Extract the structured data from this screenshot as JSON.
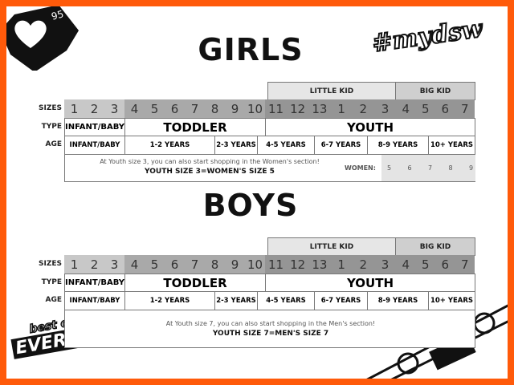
{
  "likes": {
    "count": "95",
    "icon": "heart-icon"
  },
  "hashtag": "#mydsw",
  "logo": {
    "line1": "best of",
    "line2": "EVERYTHING"
  },
  "colors": {
    "border": "#ff5a0a",
    "infant": "#c8c8c8",
    "toddler": "#a9a9a9",
    "youth": "#959595",
    "little_kid": "#e6e6e6",
    "big_kid": "#cfcfcf"
  },
  "row_labels": {
    "sizes": "SIZES",
    "type": "TYPE",
    "age": "AGE"
  },
  "sections": [
    {
      "title": "GIRLS",
      "header": [
        "LITTLE KID",
        "BIG KID"
      ],
      "sizes": [
        "1",
        "2",
        "3",
        "4",
        "5",
        "6",
        "7",
        "8",
        "9",
        "10",
        "11",
        "12",
        "13",
        "1",
        "2",
        "3",
        "4",
        "5",
        "6",
        "7"
      ],
      "types": [
        "INFANT/BABY",
        "TODDLER",
        "YOUTH"
      ],
      "ages": [
        "INFANT/BABY",
        "1-2 YEARS",
        "2-3 YEARS",
        "4-5 YEARS",
        "6-7 YEARS",
        "8-9 YEARS",
        "10+ YEARS"
      ],
      "note": "At Youth size 3, you can also start shopping in the Women's section!",
      "note_bold": "YOUTH SIZE 3=WOMEN'S SIZE 5",
      "women_label": "WOMEN:",
      "women_sizes": [
        "5",
        "6",
        "7",
        "8",
        "9"
      ]
    },
    {
      "title": "BOYS",
      "header": [
        "LITTLE KID",
        "BIG KID"
      ],
      "sizes": [
        "1",
        "2",
        "3",
        "4",
        "5",
        "6",
        "7",
        "8",
        "9",
        "10",
        "11",
        "12",
        "13",
        "1",
        "2",
        "3",
        "4",
        "5",
        "6",
        "7"
      ],
      "types": [
        "INFANT/BABY",
        "TODDLER",
        "YOUTH"
      ],
      "ages": [
        "INFANT/BABY",
        "1-2 YEARS",
        "2-3 YEARS",
        "4-5 YEARS",
        "6-7 YEARS",
        "8-9 YEARS",
        "10+ YEARS"
      ],
      "note": "At Youth size 7, you can also start shopping in the Men's section!",
      "note_bold": "YOUTH SIZE 7=MEN'S SIZE 7"
    }
  ]
}
